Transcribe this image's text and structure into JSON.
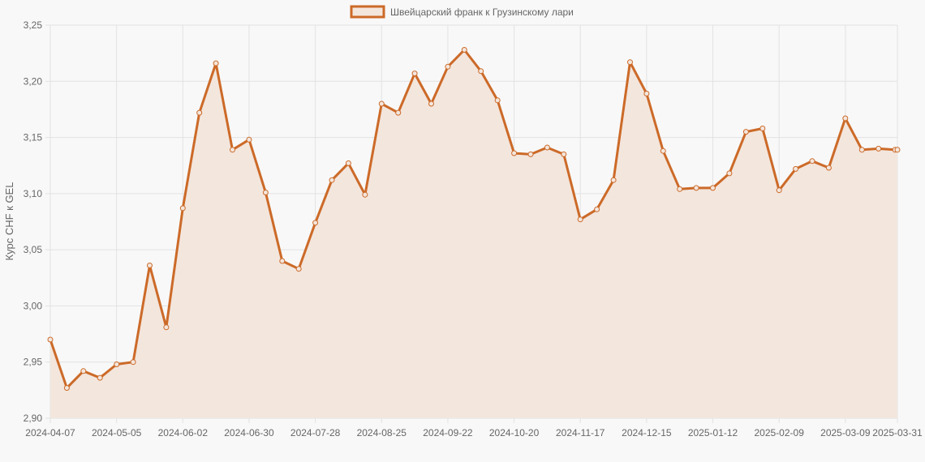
{
  "chart_data": {
    "type": "line",
    "legend": {
      "label": "Швейцарский франк к Грузинскому лари",
      "position": "top"
    },
    "ylabel": "Курс CHF к GEL",
    "xlabel": "",
    "ylim": [
      2.9,
      3.25
    ],
    "y_ticks": [
      "2,90",
      "2,95",
      "3,00",
      "3,05",
      "3,10",
      "3,15",
      "3,20",
      "3,25"
    ],
    "x_ticks": [
      "2024-04-07",
      "2024-05-05",
      "2024-06-02",
      "2024-06-30",
      "2024-07-28",
      "2024-08-25",
      "2024-09-22",
      "2024-10-20",
      "2024-11-17",
      "2024-12-15",
      "2025-01-12",
      "2025-02-09",
      "2025-03-09",
      "2025-03-31"
    ],
    "grid": true,
    "fill": true,
    "colors": {
      "line": "#cc6a28",
      "fill": "#f3e6dd",
      "grid": "#e2e2e2",
      "text": "#666666",
      "background": "#f8f8f8"
    },
    "series": [
      {
        "name": "Швейцарский франк к Грузинскому лари",
        "x": [
          "2024-04-07",
          "2024-04-14",
          "2024-04-21",
          "2024-04-28",
          "2024-05-05",
          "2024-05-12",
          "2024-05-19",
          "2024-05-26",
          "2024-06-02",
          "2024-06-09",
          "2024-06-16",
          "2024-06-23",
          "2024-06-30",
          "2024-07-07",
          "2024-07-14",
          "2024-07-21",
          "2024-07-28",
          "2024-08-04",
          "2024-08-11",
          "2024-08-18",
          "2024-08-25",
          "2024-09-01",
          "2024-09-08",
          "2024-09-15",
          "2024-09-22",
          "2024-09-29",
          "2024-10-06",
          "2024-10-13",
          "2024-10-20",
          "2024-10-27",
          "2024-11-03",
          "2024-11-10",
          "2024-11-17",
          "2024-11-24",
          "2024-12-01",
          "2024-12-08",
          "2024-12-15",
          "2024-12-22",
          "2024-12-29",
          "2025-01-05",
          "2025-01-12",
          "2025-01-19",
          "2025-01-26",
          "2025-02-02",
          "2025-02-09",
          "2025-02-16",
          "2025-02-23",
          "2025-03-02",
          "2025-03-09",
          "2025-03-16",
          "2025-03-23",
          "2025-03-30",
          "2025-03-31"
        ],
        "values": [
          2.97,
          2.927,
          2.942,
          2.936,
          2.948,
          2.95,
          3.036,
          2.981,
          3.087,
          3.172,
          3.216,
          3.139,
          3.148,
          3.101,
          3.04,
          3.033,
          3.074,
          3.112,
          3.127,
          3.099,
          3.18,
          3.172,
          3.207,
          3.18,
          3.213,
          3.228,
          3.209,
          3.183,
          3.136,
          3.135,
          3.141,
          3.135,
          3.077,
          3.086,
          3.112,
          3.217,
          3.189,
          3.138,
          3.104,
          3.105,
          3.105,
          3.118,
          3.155,
          3.158,
          3.103,
          3.122,
          3.129,
          3.123,
          3.167,
          3.139,
          3.14,
          3.139,
          3.139
        ]
      }
    ]
  }
}
